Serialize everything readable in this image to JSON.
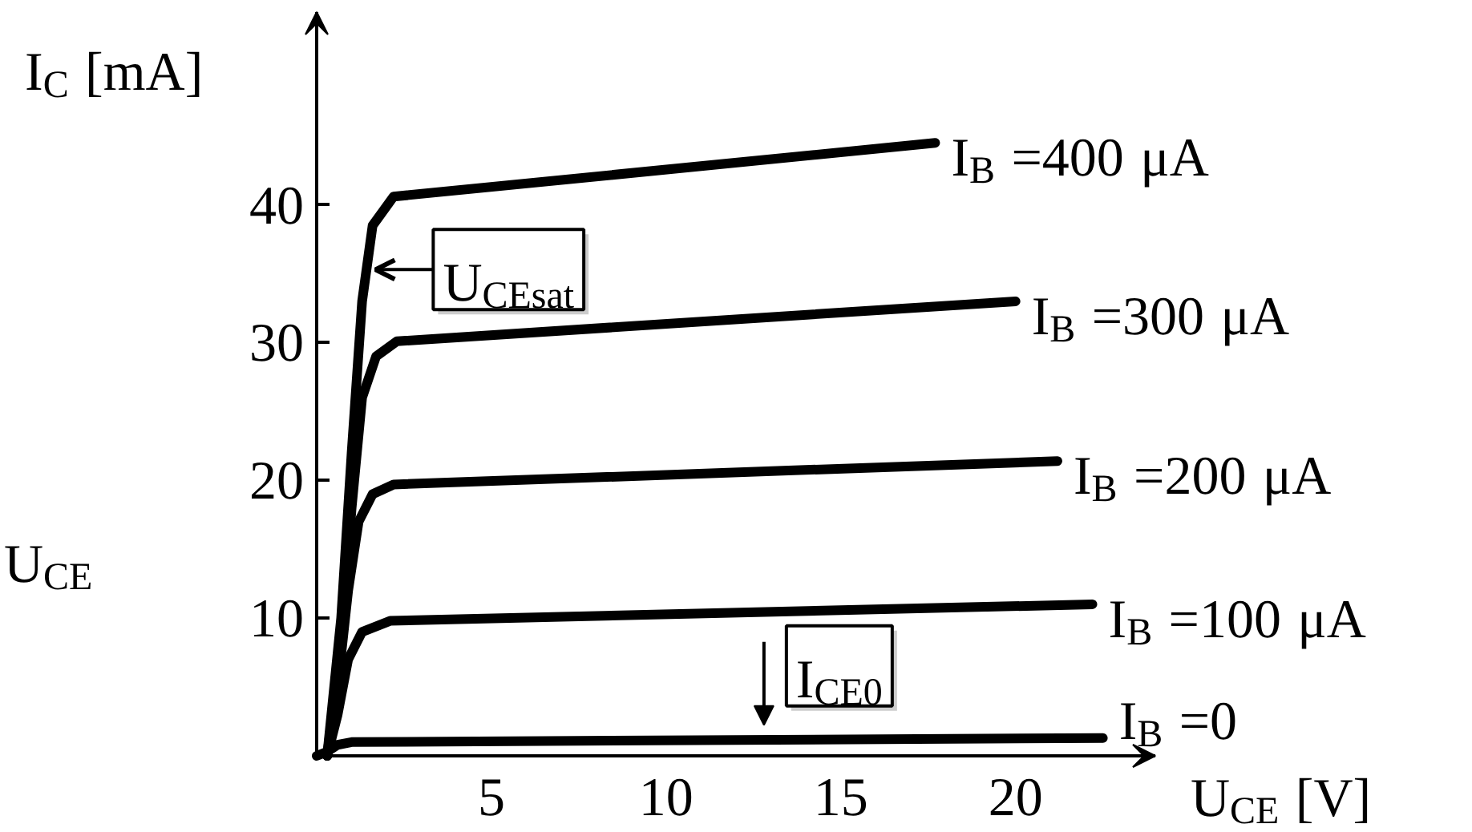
{
  "chart_data": {
    "type": "line",
    "xlabel": "U$_{CE}$ [V]",
    "ylabel": "I$_{C}$ [mA]",
    "xlim": [
      0,
      24
    ],
    "ylim": [
      0,
      54
    ],
    "xticks": [
      5,
      10,
      15,
      20
    ],
    "yticks": [
      10,
      20,
      30,
      40
    ],
    "grid": false,
    "marker": "none",
    "line_style": "solid",
    "series": [
      {
        "name": "I$_{B}$ =400 μA",
        "color": "#000000",
        "x": [
          0.3,
          0.7,
          1.0,
          1.3,
          1.6,
          2.2,
          17.7
        ],
        "values": [
          0,
          10,
          22,
          33,
          38.5,
          40.6,
          44.5
        ]
      },
      {
        "name": "I$_{B}$ =300 μA",
        "color": "#000000",
        "x": [
          0.3,
          0.7,
          1.0,
          1.3,
          1.7,
          2.3,
          20.0
        ],
        "values": [
          0,
          8,
          18,
          26,
          29,
          30.1,
          33.0
        ]
      },
      {
        "name": "I$_{B}$ =200 μA",
        "color": "#000000",
        "x": [
          0.3,
          0.6,
          0.9,
          1.2,
          1.6,
          2.2,
          21.2
        ],
        "values": [
          0,
          5,
          12,
          17,
          19,
          19.7,
          21.4
        ]
      },
      {
        "name": "I$_{B}$ =100 μA",
        "color": "#000000",
        "x": [
          0.3,
          0.6,
          0.9,
          1.3,
          2.1,
          22.2
        ],
        "values": [
          0,
          3,
          7,
          9,
          9.8,
          11.0
        ]
      },
      {
        "name": "I$_{B}$ =0",
        "color": "#000000",
        "x": [
          0,
          0.3,
          0.6,
          1.0,
          22.5
        ],
        "values": [
          0,
          0.3,
          0.8,
          1.0,
          1.3
        ]
      }
    ],
    "annotations": [
      {
        "text": "U$_{CEsat}$",
        "x": 1.5,
        "y": 35.3
      },
      {
        "text": "I$_{CE0}$",
        "x": 12.8,
        "y": 1.3
      },
      "U$_{CE}$"
    ]
  }
}
